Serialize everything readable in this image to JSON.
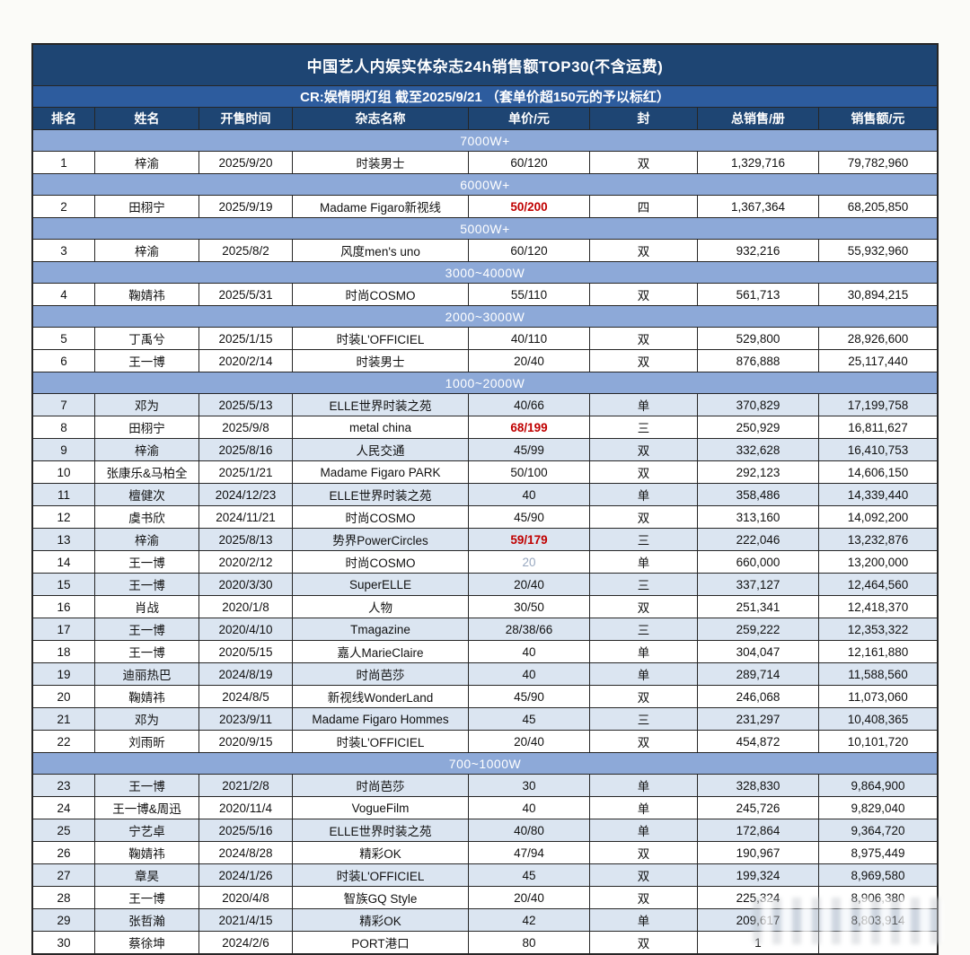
{
  "title": "中国艺人内娱实体杂志24h销售额TOP30(不含运费)",
  "subtitle": "CR:娱情明灯组  截至2025/9/21 （套单价超150元的予以标红）",
  "columns": [
    "排名",
    "姓名",
    "开售时间",
    "杂志名称",
    "单价/元",
    "封",
    "总销售/册",
    "销售额/元"
  ],
  "colors": {
    "title_bg": "#1e4573",
    "subtitle_bg": "#2d5c9e",
    "header_bg": "#1e4573",
    "section_bg": "#8da9d8",
    "row_alt_bg": "#dbe5f1",
    "red_price": "#c00000",
    "gray_price": "#98a8c0"
  },
  "groups": [
    {
      "label": "7000W+",
      "rows": [
        {
          "rank": "1",
          "name": "梓渝",
          "date": "2025/9/20",
          "magazine": "时装男士",
          "price": "60/120",
          "price_style": "normal",
          "cover": "双",
          "copies": "1,329,716",
          "revenue": "79,782,960",
          "shaded": false
        }
      ]
    },
    {
      "label": "6000W+",
      "rows": [
        {
          "rank": "2",
          "name": "田栩宁",
          "date": "2025/9/19",
          "magazine": "Madame Figaro新视线",
          "price": "50/200",
          "price_style": "red",
          "cover": "四",
          "copies": "1,367,364",
          "revenue": "68,205,850",
          "shaded": false
        }
      ]
    },
    {
      "label": "5000W+",
      "rows": [
        {
          "rank": "3",
          "name": "梓渝",
          "date": "2025/8/2",
          "magazine": "风度men's uno",
          "price": "60/120",
          "price_style": "normal",
          "cover": "双",
          "copies": "932,216",
          "revenue": "55,932,960",
          "shaded": false
        }
      ]
    },
    {
      "label": "3000~4000W",
      "rows": [
        {
          "rank": "4",
          "name": "鞠婧祎",
          "date": "2025/5/31",
          "magazine": "时尚COSMO",
          "price": "55/110",
          "price_style": "normal",
          "cover": "双",
          "copies": "561,713",
          "revenue": "30,894,215",
          "shaded": false
        }
      ]
    },
    {
      "label": "2000~3000W",
      "rows": [
        {
          "rank": "5",
          "name": "丁禹兮",
          "date": "2025/1/15",
          "magazine": "时装L'OFFICIEL",
          "price": "40/110",
          "price_style": "normal",
          "cover": "双",
          "copies": "529,800",
          "revenue": "28,926,600",
          "shaded": false
        },
        {
          "rank": "6",
          "name": "王一博",
          "date": "2020/2/14",
          "magazine": "时装男士",
          "price": "20/40",
          "price_style": "normal",
          "cover": "双",
          "copies": "876,888",
          "revenue": "25,117,440",
          "shaded": false
        }
      ]
    },
    {
      "label": "1000~2000W",
      "rows": [
        {
          "rank": "7",
          "name": "邓为",
          "date": "2025/5/13",
          "magazine": "ELLE世界时装之苑",
          "price": "40/66",
          "price_style": "normal",
          "cover": "单",
          "copies": "370,829",
          "revenue": "17,199,758",
          "shaded": true
        },
        {
          "rank": "8",
          "name": "田栩宁",
          "date": "2025/9/8",
          "magazine": "metal china",
          "price": "68/199",
          "price_style": "red",
          "cover": "三",
          "copies": "250,929",
          "revenue": "16,811,627",
          "shaded": false
        },
        {
          "rank": "9",
          "name": "梓渝",
          "date": "2025/8/16",
          "magazine": "人民交通",
          "price": "45/99",
          "price_style": "normal",
          "cover": "双",
          "copies": "332,628",
          "revenue": "16,410,753",
          "shaded": true
        },
        {
          "rank": "10",
          "name": "张康乐&马柏全",
          "date": "2025/1/21",
          "magazine": "Madame Figaro PARK",
          "price": "50/100",
          "price_style": "normal",
          "cover": "双",
          "copies": "292,123",
          "revenue": "14,606,150",
          "shaded": false
        },
        {
          "rank": "11",
          "name": "檀健次",
          "date": "2024/12/23",
          "magazine": "ELLE世界时装之苑",
          "price": "40",
          "price_style": "normal",
          "cover": "单",
          "copies": "358,486",
          "revenue": "14,339,440",
          "shaded": true
        },
        {
          "rank": "12",
          "name": "虞书欣",
          "date": "2024/11/21",
          "magazine": "时尚COSMO",
          "price": "45/90",
          "price_style": "normal",
          "cover": "双",
          "copies": "313,160",
          "revenue": "14,092,200",
          "shaded": false
        },
        {
          "rank": "13",
          "name": "梓渝",
          "date": "2025/8/13",
          "magazine": "势界PowerCircles",
          "price": "59/179",
          "price_style": "red",
          "cover": "三",
          "copies": "222,046",
          "revenue": "13,232,876",
          "shaded": true
        },
        {
          "rank": "14",
          "name": "王一博",
          "date": "2020/2/12",
          "magazine": "时尚COSMO",
          "price": "20",
          "price_style": "gray",
          "cover": "单",
          "copies": "660,000",
          "revenue": "13,200,000",
          "shaded": false
        },
        {
          "rank": "15",
          "name": "王一博",
          "date": "2020/3/30",
          "magazine": "SuperELLE",
          "price": "20/40",
          "price_style": "normal",
          "cover": "三",
          "copies": "337,127",
          "revenue": "12,464,560",
          "shaded": true
        },
        {
          "rank": "16",
          "name": "肖战",
          "date": "2020/1/8",
          "magazine": "人物",
          "price": "30/50",
          "price_style": "normal",
          "cover": "双",
          "copies": "251,341",
          "revenue": "12,418,370",
          "shaded": false
        },
        {
          "rank": "17",
          "name": "王一博",
          "date": "2020/4/10",
          "magazine": "Tmagazine",
          "price": "28/38/66",
          "price_style": "normal",
          "cover": "三",
          "copies": "259,222",
          "revenue": "12,353,322",
          "shaded": true
        },
        {
          "rank": "18",
          "name": "王一博",
          "date": "2020/5/15",
          "magazine": "嘉人MarieClaire",
          "price": "40",
          "price_style": "normal",
          "cover": "单",
          "copies": "304,047",
          "revenue": "12,161,880",
          "shaded": false
        },
        {
          "rank": "19",
          "name": "迪丽热巴",
          "date": "2024/8/19",
          "magazine": "时尚芭莎",
          "price": "40",
          "price_style": "normal",
          "cover": "单",
          "copies": "289,714",
          "revenue": "11,588,560",
          "shaded": true
        },
        {
          "rank": "20",
          "name": "鞠婧祎",
          "date": "2024/8/5",
          "magazine": "新视线WonderLand",
          "price": "45/90",
          "price_style": "normal",
          "cover": "双",
          "copies": "246,068",
          "revenue": "11,073,060",
          "shaded": false
        },
        {
          "rank": "21",
          "name": "邓为",
          "date": "2023/9/11",
          "magazine": "Madame Figaro Hommes",
          "price": "45",
          "price_style": "normal",
          "cover": "三",
          "copies": "231,297",
          "revenue": "10,408,365",
          "shaded": true
        },
        {
          "rank": "22",
          "name": "刘雨昕",
          "date": "2020/9/15",
          "magazine": "时装L'OFFICIEL",
          "price": "20/40",
          "price_style": "normal",
          "cover": "双",
          "copies": "454,872",
          "revenue": "10,101,720",
          "shaded": false
        }
      ]
    },
    {
      "label": "700~1000W",
      "rows": [
        {
          "rank": "23",
          "name": "王一博",
          "date": "2021/2/8",
          "magazine": "时尚芭莎",
          "price": "30",
          "price_style": "normal",
          "cover": "单",
          "copies": "328,830",
          "revenue": "9,864,900",
          "shaded": true
        },
        {
          "rank": "24",
          "name": "王一博&周迅",
          "date": "2020/11/4",
          "magazine": "VogueFilm",
          "price": "40",
          "price_style": "normal",
          "cover": "单",
          "copies": "245,726",
          "revenue": "9,829,040",
          "shaded": false
        },
        {
          "rank": "25",
          "name": "宁艺卓",
          "date": "2025/5/16",
          "magazine": "ELLE世界时装之苑",
          "price": "40/80",
          "price_style": "normal",
          "cover": "单",
          "copies": "172,864",
          "revenue": "9,364,720",
          "shaded": true
        },
        {
          "rank": "26",
          "name": "鞠婧祎",
          "date": "2024/8/28",
          "magazine": "精彩OK",
          "price": "47/94",
          "price_style": "normal",
          "cover": "双",
          "copies": "190,967",
          "revenue": "8,975,449",
          "shaded": false
        },
        {
          "rank": "27",
          "name": "章昊",
          "date": "2024/1/26",
          "magazine": "时装L'OFFICIEL",
          "price": "45",
          "price_style": "normal",
          "cover": "双",
          "copies": "199,324",
          "revenue": "8,969,580",
          "shaded": true
        },
        {
          "rank": "28",
          "name": "王一博",
          "date": "2020/4/8",
          "magazine": "智族GQ Style",
          "price": "20/40",
          "price_style": "normal",
          "cover": "双",
          "copies": "225,324",
          "revenue": "8,906,380",
          "shaded": false
        },
        {
          "rank": "29",
          "name": "张哲瀚",
          "date": "2021/4/15",
          "magazine": "精彩OK",
          "price": "42",
          "price_style": "normal",
          "cover": "单",
          "copies": "209,617",
          "revenue": "8,803,914",
          "shaded": true
        },
        {
          "rank": "30",
          "name": "蔡徐坤",
          "date": "2024/2/6",
          "magazine": "PORT港口",
          "price": "80",
          "price_style": "normal",
          "cover": "双",
          "copies": "1",
          "revenue": "",
          "shaded": false
        }
      ]
    }
  ]
}
